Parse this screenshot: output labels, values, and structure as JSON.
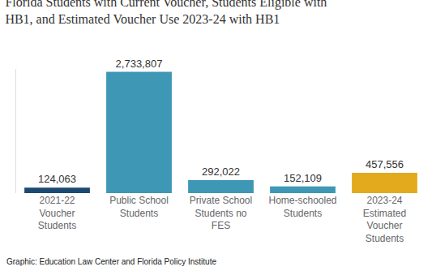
{
  "chart_data": {
    "type": "bar",
    "title": "Florida Students with Current Voucher, Students Eligible with HB1, and Estimated Voucher Use 2023-24 with HB1",
    "categories": [
      "2021-22 Voucher Students",
      "Public School Students",
      "Private School Students no FES",
      "Home-schooled Students",
      "2023-24 Estimated Voucher Students"
    ],
    "values": [
      124063,
      2733807,
      292022,
      152109,
      457556
    ],
    "value_labels": [
      "124,063",
      "2,733,807",
      "292,022",
      "152,109",
      "457,556"
    ],
    "colors": [
      "#1b4a73",
      "#3d97b5",
      "#3d97b5",
      "#3d97b5",
      "#e2aa1c"
    ],
    "ylim": [
      0,
      2800000
    ],
    "yticks": [],
    "grid": false,
    "data_labels": true,
    "tick_labels": "x",
    "annotations": [
      "Graphic: Education Law Center and Florida Policy Institute"
    ]
  }
}
